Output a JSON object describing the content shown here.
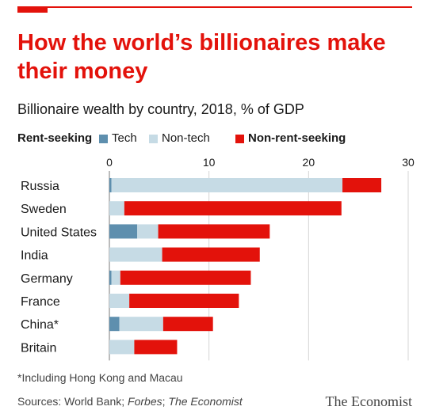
{
  "headline": "How the world’s billionaires make their money",
  "chart_data": {
    "type": "bar",
    "orientation": "horizontal",
    "stacked": true,
    "title": "Billionaire wealth by country, 2018, % of GDP",
    "categories": [
      "Russia",
      "Sweden",
      "United States",
      "India",
      "Germany",
      "France",
      "China*",
      "Britain"
    ],
    "series": [
      {
        "name": "Tech",
        "group": "Rent-seeking",
        "color": "#5e8fae",
        "values": [
          0.2,
          0,
          2.8,
          0,
          0.2,
          0,
          1.0,
          0
        ]
      },
      {
        "name": "Non-tech",
        "group": "Rent-seeking",
        "color": "#c6dbe5",
        "values": [
          23.2,
          1.5,
          2.1,
          5.3,
          0.9,
          2.0,
          4.4,
          2.5
        ]
      },
      {
        "name": "Non-rent-seeking",
        "color": "#e3120b",
        "values": [
          3.9,
          21.8,
          11.2,
          9.8,
          13.1,
          11.0,
          5.0,
          4.3
        ]
      }
    ],
    "xlim": [
      0,
      30
    ],
    "xticks": [
      0,
      10,
      20,
      30
    ],
    "xtick_labels": [
      "0",
      "10",
      "20",
      "30"
    ],
    "legend_heading": "Rent-seeking",
    "grid": "vertical",
    "legend_position": "top-left"
  },
  "footnote": "*Including Hong Kong and Macau",
  "source": {
    "prefix": "Sources: World Bank;",
    "forbes": "Forbes",
    "sep": ";",
    "economist": "The Economist"
  },
  "brand": "The Economist"
}
